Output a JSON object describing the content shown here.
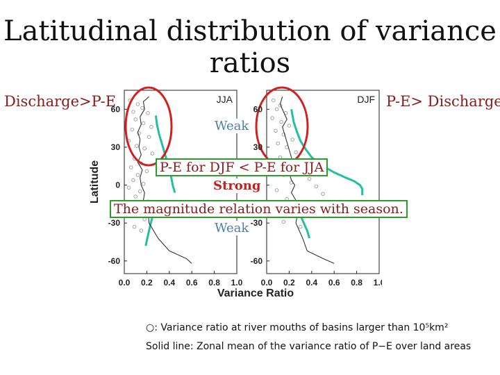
{
  "title": "Latitudinal distribution of variance ratios",
  "left_label": "Discharge>P-E",
  "right_label": "P-E> Discharge",
  "callout_text": "P-E for DJF < P-E for JJA",
  "magnitude_text": "The magnitude relation varies with season.",
  "weak_text": "Weak",
  "strong_text": "Strong",
  "note_circle": "○: Variance ratio at river mouths of basins larger than 10⁵km²",
  "note_line": "Solid line: Zonal mean of the variance ratio of P−E over land areas",
  "colors": {
    "zonal_mean": "#20c0a0",
    "highlight": "#d41f1f",
    "callout_border": "#2a9d2a",
    "discharge_line": "#333333"
  },
  "chart_data": [
    {
      "type": "line",
      "panel": "JJA",
      "xlabel": "Variance Ratio",
      "ylabel": "Latitude",
      "xlim": [
        0.0,
        1.0
      ],
      "ylim": [
        -70,
        75
      ],
      "xticks": [
        "0.0",
        "0.2",
        "0.4",
        "0.6",
        "0.8",
        "1.0"
      ],
      "yticks": [
        "60",
        "30",
        "0",
        "-30",
        "-60"
      ],
      "series": [
        {
          "x": [
            0.28,
            0.29,
            0.31,
            0.33,
            0.35,
            0.37,
            0.39,
            0.41,
            0.42,
            0.43,
            0.44,
            0.45
          ],
          "y": [
            55,
            48,
            40,
            34,
            28,
            22,
            16,
            10,
            5,
            0,
            -3,
            -6
          ]
        },
        {
          "x": [
            0.26,
            0.25,
            0.23,
            0.21,
            0.19
          ],
          "y": [
            -20,
            -25,
            -32,
            -40,
            -48
          ]
        },
        {
          "x": [
            0.22,
            0.17,
            0.18,
            0.14,
            0.15,
            0.12,
            0.14,
            0.13,
            0.15,
            0.12,
            0.16,
            0.14,
            0.15,
            0.18,
            0.17,
            0.21,
            0.22,
            0.3,
            0.4,
            0.55,
            0.6
          ],
          "y": [
            70,
            66,
            60,
            54,
            48,
            42,
            36,
            30,
            24,
            18,
            12,
            6,
            0,
            -6,
            -12,
            -20,
            -30,
            -42,
            -52,
            -58,
            -62
          ]
        }
      ],
      "points": [
        [
          0.05,
          67
        ],
        [
          0.12,
          64
        ],
        [
          0.16,
          61
        ],
        [
          0.08,
          58
        ],
        [
          0.21,
          57
        ],
        [
          0.1,
          52
        ],
        [
          0.17,
          49
        ],
        [
          0.24,
          46
        ],
        [
          0.07,
          44
        ],
        [
          0.13,
          41
        ],
        [
          0.22,
          38
        ],
        [
          0.04,
          35
        ],
        [
          0.11,
          31
        ],
        [
          0.18,
          29
        ],
        [
          0.25,
          25
        ],
        [
          0.09,
          21
        ],
        [
          0.15,
          17
        ],
        [
          0.06,
          14
        ],
        [
          0.2,
          11
        ],
        [
          0.12,
          8
        ],
        [
          0.08,
          4
        ],
        [
          0.17,
          1
        ],
        [
          0.04,
          -2
        ],
        [
          0.14,
          -5
        ],
        [
          0.1,
          -9
        ],
        [
          0.21,
          -13
        ],
        [
          0.07,
          -17
        ],
        [
          0.12,
          -22
        ],
        [
          0.18,
          -27
        ],
        [
          0.09,
          -33
        ],
        [
          0.15,
          -36
        ]
      ]
    },
    {
      "type": "line",
      "panel": "DJF",
      "xlabel": "Variance Ratio",
      "ylabel": "",
      "xlim": [
        0.0,
        1.0
      ],
      "ylim": [
        -70,
        75
      ],
      "xticks": [
        "0.0",
        "0.2",
        "0.4",
        "0.6",
        "0.8",
        "1.0"
      ],
      "yticks": [
        "60",
        "30",
        "0",
        "-30",
        "-60"
      ],
      "series": [
        {
          "x": [
            0.22,
            0.24,
            0.27,
            0.3,
            0.35,
            0.4,
            0.5,
            0.6,
            0.7,
            0.78,
            0.83,
            0.85,
            0.85
          ],
          "y": [
            60,
            50,
            42,
            35,
            28,
            22,
            15,
            10,
            6,
            3,
            0,
            -3,
            -8
          ]
        },
        {
          "x": [
            0.28,
            0.3,
            0.33,
            0.36,
            0.38
          ],
          "y": [
            -18,
            -24,
            -30,
            -36,
            -42
          ]
        },
        {
          "x": [
            0.14,
            0.12,
            0.15,
            0.18,
            0.14,
            0.16,
            0.18,
            0.2,
            0.22,
            0.24,
            0.2,
            0.22,
            0.25,
            0.22,
            0.26,
            0.28,
            0.26,
            0.32,
            0.36,
            0.5,
            0.6
          ],
          "y": [
            70,
            64,
            58,
            52,
            46,
            40,
            34,
            28,
            22,
            16,
            10,
            4,
            0,
            -6,
            -12,
            -20,
            -30,
            -42,
            -52,
            -58,
            -62
          ]
        }
      ],
      "points": [
        [
          0.06,
          67
        ],
        [
          0.12,
          63
        ],
        [
          0.09,
          60
        ],
        [
          0.17,
          57
        ],
        [
          0.05,
          53
        ],
        [
          0.13,
          50
        ],
        [
          0.2,
          47
        ],
        [
          0.08,
          43
        ],
        [
          0.15,
          40
        ],
        [
          0.23,
          36
        ],
        [
          0.1,
          33
        ],
        [
          0.18,
          30
        ],
        [
          0.26,
          26
        ],
        [
          0.12,
          22
        ],
        [
          0.28,
          18
        ],
        [
          0.07,
          14
        ],
        [
          0.32,
          11
        ],
        [
          0.15,
          8
        ],
        [
          0.38,
          5
        ],
        [
          0.22,
          2
        ],
        [
          0.44,
          -1
        ],
        [
          0.09,
          -4
        ],
        [
          0.5,
          -7
        ],
        [
          0.18,
          -11
        ],
        [
          0.4,
          -15
        ],
        [
          0.1,
          -19
        ],
        [
          0.25,
          -24
        ],
        [
          0.15,
          -29
        ],
        [
          0.3,
          -33
        ]
      ]
    }
  ]
}
